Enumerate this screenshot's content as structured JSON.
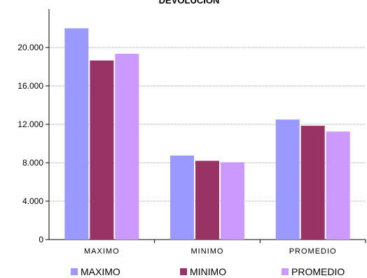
{
  "chart_data": {
    "type": "bar",
    "title": "DEVOLUCION",
    "categories": [
      "MAXIMO",
      "MINIMO",
      "PROMEDIO"
    ],
    "series": [
      {
        "name": "MAXIMO",
        "color": "#9999ff",
        "values": [
          22000,
          8750,
          12500
        ]
      },
      {
        "name": "MINIMO",
        "color": "#993366",
        "values": [
          18650,
          8200,
          11850
        ]
      },
      {
        "name": "PROMEDIO",
        "color": "#cc99ff",
        "values": [
          19350,
          8050,
          11250
        ]
      }
    ],
    "y_ticks": [
      "0",
      "4.000",
      "8.000",
      "12.000",
      "16.000",
      "20.000"
    ],
    "ylim": [
      0,
      24000
    ],
    "grid": true,
    "legend_position": "bottom"
  }
}
